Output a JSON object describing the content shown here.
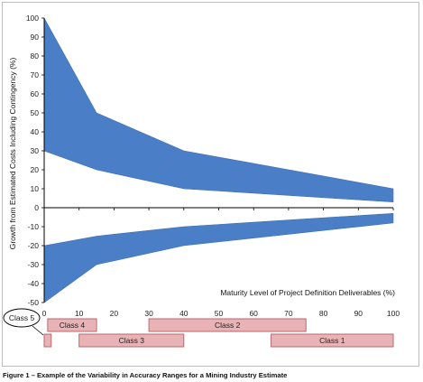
{
  "chart_data": {
    "type": "area",
    "ylabel": "Growth from Estimated Costs Including Contingency (%)",
    "xlabel": "Maturity Level of Project Definition Deliverables (%)",
    "xlim": [
      0,
      100
    ],
    "ylim": [
      -50,
      100
    ],
    "x_ticks": [
      0,
      10,
      20,
      30,
      40,
      50,
      60,
      70,
      80,
      90,
      100
    ],
    "y_ticks": [
      -50,
      -40,
      -30,
      -20,
      -10,
      0,
      10,
      20,
      30,
      40,
      50,
      60,
      70,
      80,
      90,
      100
    ],
    "grid": false,
    "zero_line": true,
    "band_color": "#4a7ec7",
    "series": [
      {
        "x": [
          0,
          15,
          40,
          100
        ],
        "upper": [
          100,
          50,
          30,
          10
        ],
        "lower": [
          30,
          20,
          10,
          3
        ]
      },
      {
        "x": [
          0,
          15,
          40,
          100
        ],
        "upper": [
          -20,
          -15,
          -10,
          -3
        ],
        "lower": [
          -50,
          -30,
          -20,
          -8
        ]
      }
    ],
    "classes": [
      {
        "label": "Class 5",
        "start": 0,
        "end": 2
      },
      {
        "label": "Class 4",
        "start": 1,
        "end": 15
      },
      {
        "label": "Class 3",
        "start": 10,
        "end": 40
      },
      {
        "label": "Class 2",
        "start": 30,
        "end": 75
      },
      {
        "label": "Class 1",
        "start": 65,
        "end": 100
      }
    ],
    "class_bar_color": "#e9b3b5",
    "class_bar_border": "#b86a70"
  },
  "caption": "Figure 1 – Example of the Variability in Accuracy Ranges for a Mining Industry Estimate"
}
